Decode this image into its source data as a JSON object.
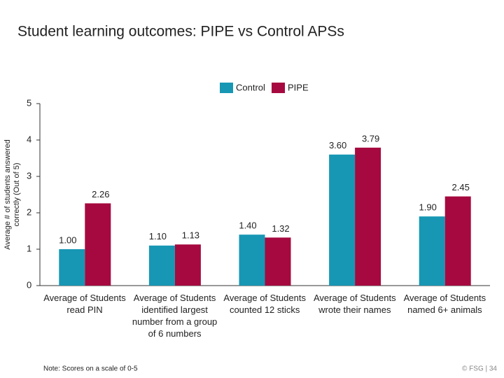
{
  "chart_data": {
    "type": "bar",
    "title": "Student learning outcomes: PIPE vs Control APSs",
    "y_label": "Average # of students answered correctly (Out of 5)",
    "categories": [
      "Average of Students read PIN",
      "Average of Students identified largest number from a group of 6 numbers",
      "Average of Students counted 12 sticks",
      "Average of Students wrote their names",
      "Average of Students named 6+ animals"
    ],
    "series": [
      {
        "name": "Control",
        "color": "#1797b4",
        "values": [
          1.0,
          1.1,
          1.4,
          3.6,
          1.9
        ],
        "value_labels": [
          "1.00",
          "1.10",
          "1.40",
          "3.60",
          "1.90"
        ]
      },
      {
        "name": "PIPE",
        "color": "#a6093f",
        "values": [
          2.26,
          1.13,
          1.32,
          3.79,
          2.45
        ],
        "value_labels": [
          "2.26",
          "1.13",
          "1.32",
          "3.79",
          "2.45"
        ]
      }
    ],
    "ylim": [
      0,
      5
    ],
    "yticks": [
      0,
      1,
      2,
      3,
      4,
      5
    ],
    "legend": "top",
    "note": "Note: Scores on a scale of 0-5",
    "footer": "© FSG | 34"
  }
}
